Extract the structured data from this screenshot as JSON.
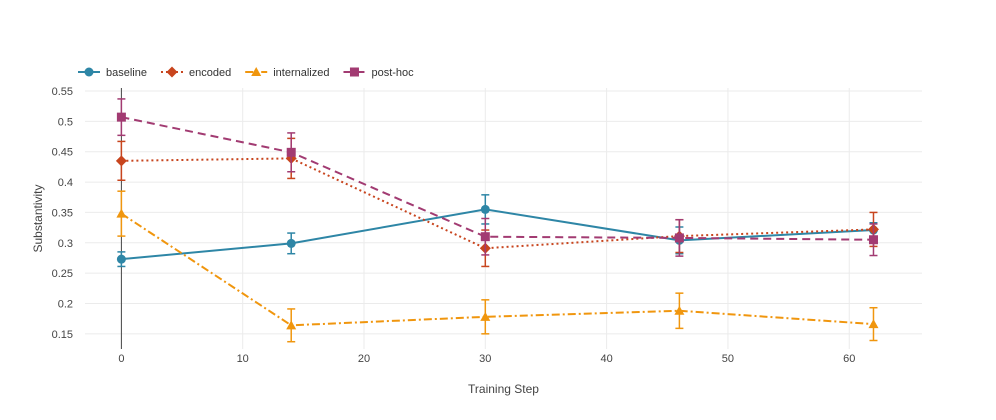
{
  "chart_data": {
    "type": "line",
    "title": "",
    "xlabel": "Training Step",
    "ylabel": "Substantivity",
    "xlim": [
      -3,
      66
    ],
    "ylim": [
      0.125,
      0.555
    ],
    "xticks": [
      0,
      10,
      20,
      30,
      40,
      50,
      60
    ],
    "xtick_labels": [
      "0",
      "10",
      "20",
      "30",
      "40",
      "50",
      "60"
    ],
    "yticks": [
      0.15,
      0.2,
      0.25,
      0.3,
      0.35,
      0.4,
      0.45,
      0.5,
      0.55
    ],
    "ytick_labels": [
      "0.15",
      "0.2",
      "0.25",
      "0.3",
      "0.35",
      "0.4",
      "0.45",
      "0.5",
      "0.55"
    ],
    "grid": true,
    "legend_position": "top-left",
    "series": [
      {
        "name": "baseline",
        "color": "#2e86a6",
        "marker": "circle",
        "dash": "solid",
        "x": [
          0,
          14,
          30,
          46,
          62
        ],
        "values": [
          0.273,
          0.299,
          0.355,
          0.304,
          0.321
        ],
        "errors": [
          0.012,
          0.017,
          0.024,
          0.022,
          0.012
        ]
      },
      {
        "name": "encoded",
        "color": "#c8451e",
        "marker": "diamond",
        "dash": "dot",
        "x": [
          0,
          14,
          30,
          46,
          62
        ],
        "values": [
          0.435,
          0.439,
          0.291,
          0.311,
          0.322
        ],
        "errors": [
          0.032,
          0.033,
          0.03,
          0.027,
          0.028
        ]
      },
      {
        "name": "internalized",
        "color": "#f0960e",
        "marker": "triangle",
        "dash": "dashdot",
        "x": [
          0,
          14,
          30,
          46,
          62
        ],
        "values": [
          0.348,
          0.164,
          0.178,
          0.188,
          0.166
        ],
        "errors": [
          0.037,
          0.027,
          0.028,
          0.029,
          0.027
        ]
      },
      {
        "name": "post-hoc",
        "color": "#a23b72",
        "marker": "square",
        "dash": "dash",
        "x": [
          0,
          14,
          30,
          46,
          62
        ],
        "values": [
          0.507,
          0.449,
          0.31,
          0.308,
          0.305
        ],
        "errors": [
          0.03,
          0.032,
          0.03,
          0.03,
          0.026
        ]
      }
    ]
  }
}
